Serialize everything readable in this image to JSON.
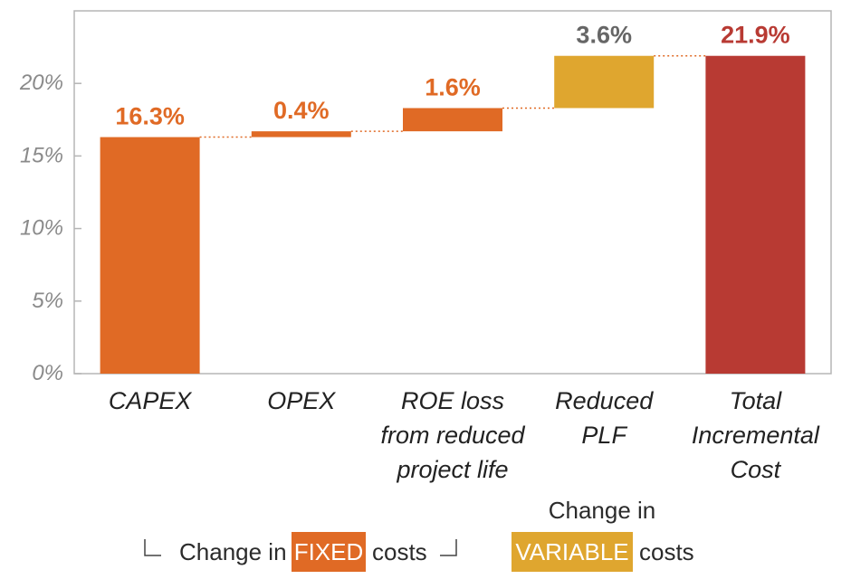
{
  "chart_data": {
    "type": "bar",
    "subtype": "waterfall",
    "categories": [
      "CAPEX",
      "OPEX",
      "ROE loss from reduced project life",
      "Reduced PLF",
      "Total Incremental Cost"
    ],
    "category_lines": [
      [
        "CAPEX"
      ],
      [
        "OPEX"
      ],
      [
        "ROE loss",
        "from reduced",
        "project life"
      ],
      [
        "Reduced",
        "PLF"
      ],
      [
        "Total",
        "Incremental",
        "Cost"
      ]
    ],
    "values": [
      16.3,
      0.4,
      1.6,
      3.6,
      21.9
    ],
    "data_labels": [
      "16.3%",
      "0.4%",
      "1.6%",
      "3.6%",
      "21.9%"
    ],
    "bar_start": [
      0,
      16.3,
      16.7,
      18.3,
      0
    ],
    "bar_end": [
      16.3,
      16.7,
      18.3,
      21.9,
      21.9
    ],
    "bar_colors": [
      "#e06a25",
      "#e06a25",
      "#e06a25",
      "#dfa62f",
      "#b83a33"
    ],
    "label_colors": [
      "#e06a25",
      "#e06a25",
      "#e06a25",
      "#666666",
      "#b83a33"
    ],
    "ylim": [
      0,
      25
    ],
    "yticks": [
      0,
      5,
      10,
      15,
      20
    ],
    "ytick_labels": [
      "0%",
      "5%",
      "10%",
      "15%",
      "20%"
    ],
    "connector_color": "#e06a25",
    "xlabel": "",
    "ylabel": "",
    "title": "",
    "grid": false
  },
  "legend": {
    "fixed_prefix": "Change in",
    "fixed_keyword": "FIXED",
    "fixed_suffix": "costs",
    "variable_top": "Change in",
    "variable_keyword": "VARIABLE",
    "variable_suffix": "costs",
    "fixed_color": "#e06a25",
    "variable_color": "#dfa62f"
  }
}
